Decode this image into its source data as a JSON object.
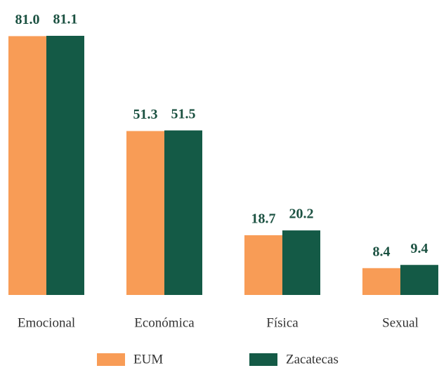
{
  "chart_data": {
    "type": "bar",
    "categories": [
      "Emocional",
      "Económica",
      "Física",
      "Sexual"
    ],
    "series": [
      {
        "name": "EUM",
        "color": "#f89c56",
        "values": [
          81.0,
          51.3,
          18.7,
          8.4
        ],
        "value_labels": [
          "81.0",
          "51.3",
          "18.7",
          "8.4"
        ]
      },
      {
        "name": "Zacatecas",
        "color": "#145a46",
        "values": [
          81.1,
          51.5,
          20.2,
          9.4
        ],
        "value_labels": [
          "81.1",
          "51.5",
          "20.2",
          "9.4"
        ]
      }
    ],
    "legend": "bottom"
  }
}
